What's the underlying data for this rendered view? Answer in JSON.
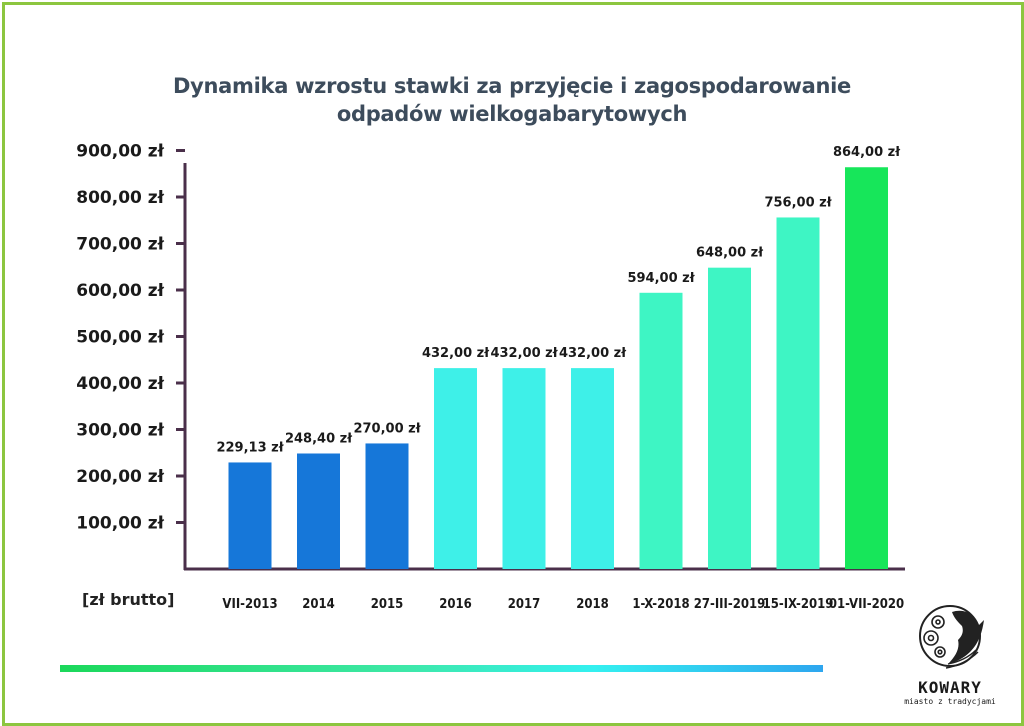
{
  "chart_data": {
    "type": "bar",
    "title_lines": [
      "Dynamika wzrostu stawki za przyjęcie i zagospodarowanie",
      "odpadów wielkogabarytowych"
    ],
    "unit_label": "[zł brutto]",
    "categories": [
      "VII-2013",
      "2014",
      "2015",
      "2016",
      "2017",
      "2018",
      "1-X-2018",
      "27-III-2019",
      "15-IX-2019",
      "01-VII-2020"
    ],
    "values": [
      229.13,
      248.4,
      270.0,
      432.0,
      432.0,
      432.0,
      594.0,
      648.0,
      756.0,
      864.0
    ],
    "value_labels": [
      "229,13 zł",
      "248,40 zł",
      "270,00 zł",
      "432,00 zł",
      "432,00 zł",
      "432,00 zł",
      "594,00 zł",
      "648,00 zł",
      "756,00 zł",
      "864,00 zł"
    ],
    "y_ticks": [
      100,
      200,
      300,
      400,
      500,
      600,
      700,
      800,
      900
    ],
    "y_tick_labels": [
      "100,00 zł",
      "200,00 zł",
      "300,00 zł",
      "400,00 zł",
      "500,00 zł",
      "600,00 zł",
      "700,00 zł",
      "800,00 zł",
      "900,00 zł"
    ],
    "ylim": [
      0,
      900
    ],
    "bar_colors": [
      "#1677d9",
      "#1677d9",
      "#1677d9",
      "#3ef0e8",
      "#3ef0e8",
      "#3ef0e8",
      "#3ef5c4",
      "#3ef5c4",
      "#3ef5c4",
      "#17e65a"
    ],
    "axis_color": "#4a2f4a",
    "grid": false,
    "legend": "none"
  },
  "logo": {
    "name": "KOWARY",
    "tagline": "miasto z tradycjami"
  },
  "colors": {
    "frame": "#8cc63f",
    "title": "#3d4c5c"
  }
}
